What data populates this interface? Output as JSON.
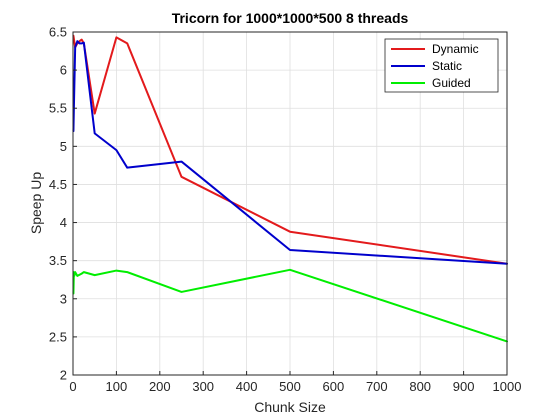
{
  "chart_data": {
    "type": "line",
    "title": "Tricorn for 1000*1000*500 8 threads",
    "xlabel": "Chunk Size",
    "ylabel": "Speep Up",
    "xlim": [
      0,
      1000
    ],
    "ylim": [
      2,
      6.5
    ],
    "xticks": [
      "0",
      "100",
      "200",
      "300",
      "400",
      "500",
      "600",
      "700",
      "800",
      "900",
      "1000"
    ],
    "yticks": [
      "2",
      "2.5",
      "3",
      "3.5",
      "4",
      "4.5",
      "5",
      "5.5",
      "6",
      "6.5"
    ],
    "grid": true,
    "legend_position": "top-right",
    "series": [
      {
        "name": "Dynamic",
        "color": "#e31a1c",
        "x": [
          1,
          5,
          10,
          15,
          20,
          25,
          50,
          100,
          125,
          250,
          500,
          1000
        ],
        "y": [
          6.45,
          6.3,
          6.35,
          6.38,
          6.4,
          6.35,
          5.43,
          6.43,
          6.35,
          4.6,
          3.88,
          3.46
        ]
      },
      {
        "name": "Static",
        "color": "#0000cc",
        "x": [
          1,
          2,
          5,
          10,
          15,
          20,
          25,
          50,
          100,
          125,
          250,
          500,
          1000
        ],
        "y": [
          5.2,
          5.5,
          6.3,
          6.38,
          6.35,
          6.35,
          6.36,
          5.17,
          4.95,
          4.72,
          4.8,
          3.64,
          3.46
        ]
      },
      {
        "name": "Guided",
        "color": "#00ee00",
        "x": [
          1,
          2,
          3,
          5,
          10,
          20,
          25,
          50,
          100,
          125,
          250,
          500,
          1000
        ],
        "y": [
          3.07,
          3.35,
          3.3,
          3.35,
          3.3,
          3.33,
          3.35,
          3.31,
          3.37,
          3.35,
          3.09,
          3.38,
          2.44
        ]
      }
    ]
  }
}
